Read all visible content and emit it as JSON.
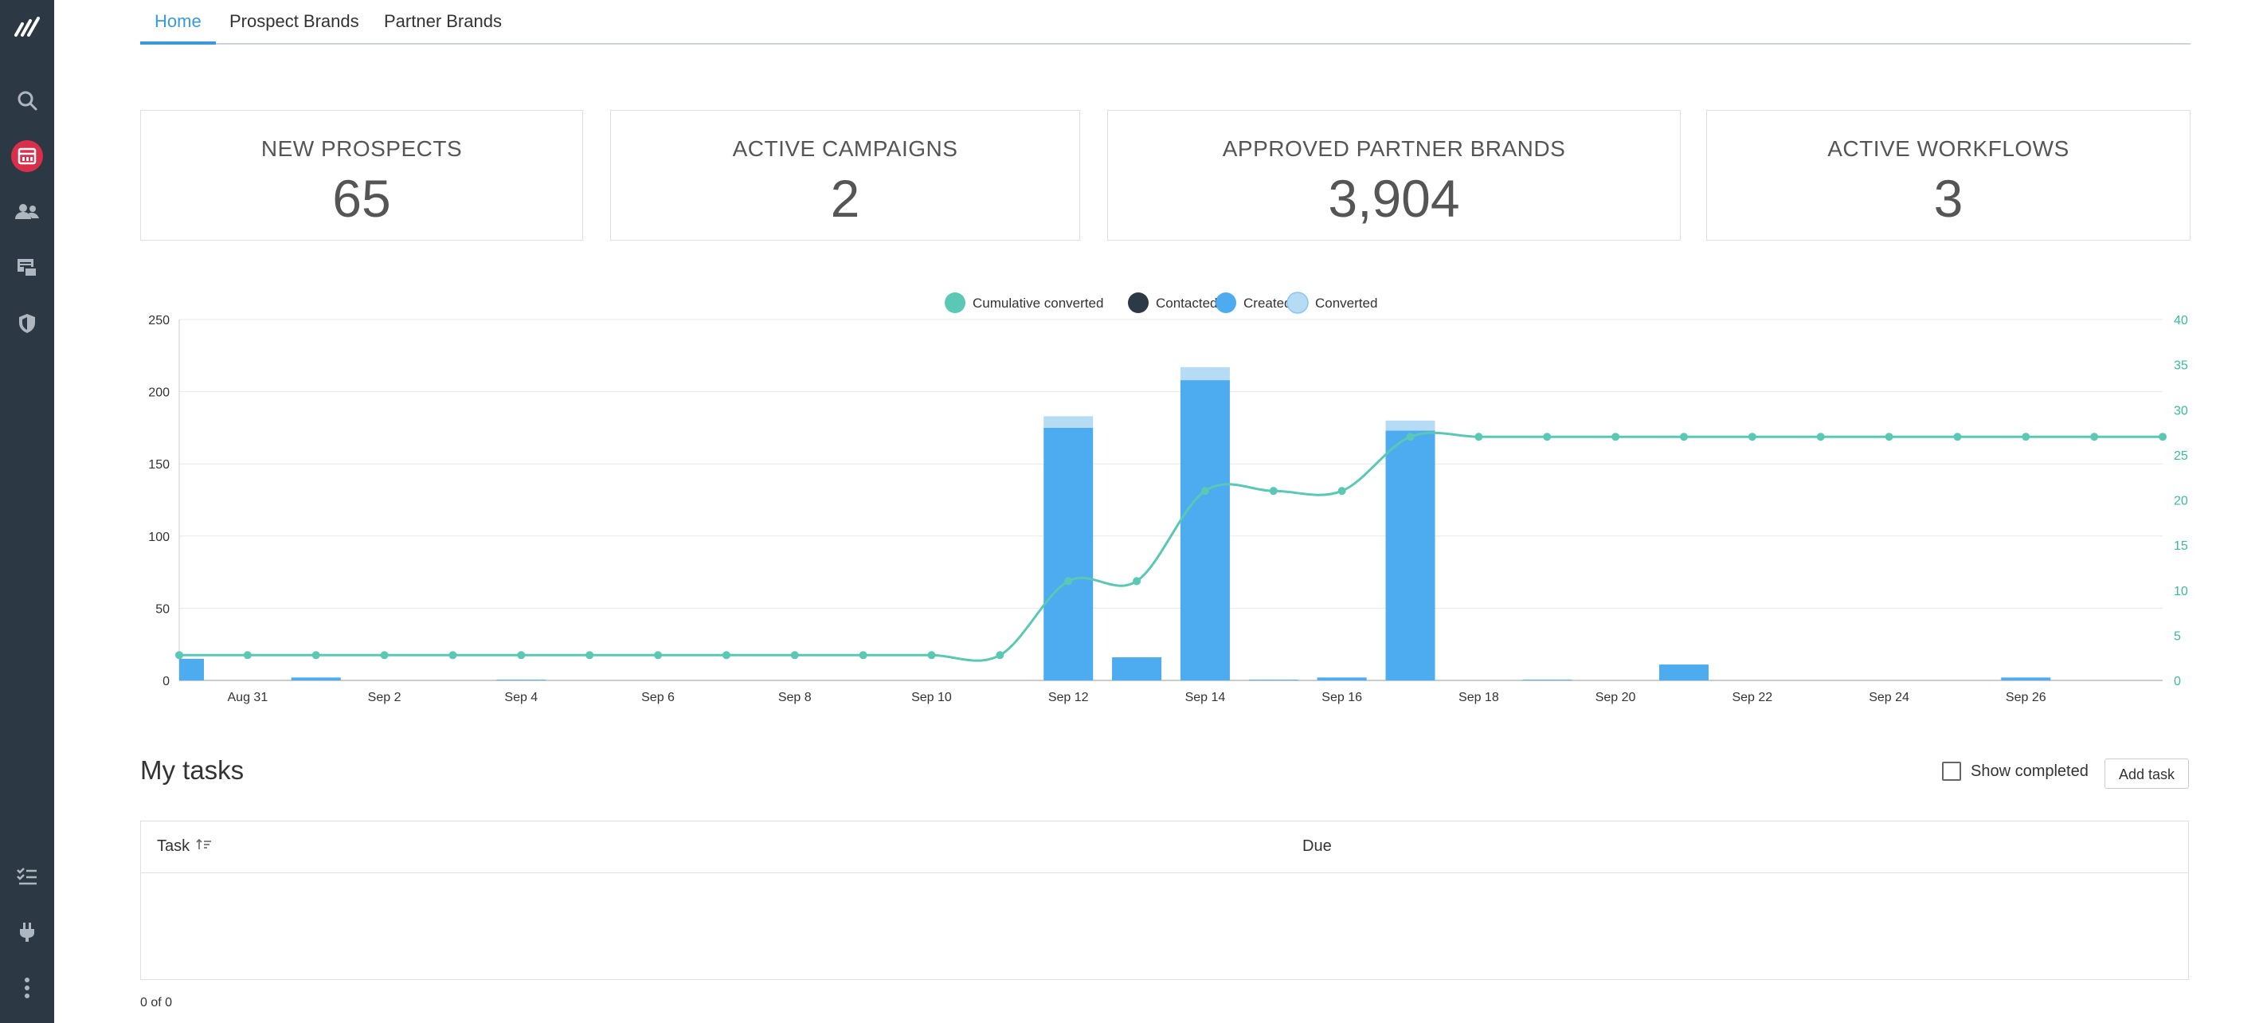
{
  "tabs": [
    {
      "label": "Home",
      "active": true
    },
    {
      "label": "Prospect Brands",
      "active": false
    },
    {
      "label": "Partner Brands",
      "active": false
    }
  ],
  "sidebar": {
    "icons": [
      "logo-icon",
      "search-icon",
      "dashboard-icon",
      "users-icon",
      "brands-icon",
      "shield-icon",
      "tasks-icon",
      "plug-icon",
      "more-icon"
    ],
    "active_color": "#d8304a",
    "bg_color": "#2c3844"
  },
  "kpis": [
    {
      "label": "NEW PROSPECTS",
      "value": "65"
    },
    {
      "label": "ACTIVE CAMPAIGNS",
      "value": "2"
    },
    {
      "label": "APPROVED PARTNER BRANDS",
      "value": "3,904"
    },
    {
      "label": "ACTIVE WORKFLOWS",
      "value": "3"
    }
  ],
  "chart_data": {
    "type": "bar",
    "categories": [
      "Aug 30",
      "Aug 31",
      "Sep 1",
      "Sep 2",
      "Sep 3",
      "Sep 4",
      "Sep 5",
      "Sep 6",
      "Sep 7",
      "Sep 8",
      "Sep 9",
      "Sep 10",
      "Sep 11",
      "Sep 12",
      "Sep 13",
      "Sep 14",
      "Sep 15",
      "Sep 16",
      "Sep 17",
      "Sep 18",
      "Sep 19",
      "Sep 20",
      "Sep 21",
      "Sep 22",
      "Sep 23",
      "Sep 24",
      "Sep 25",
      "Sep 26",
      "Sep 27",
      "Sep 28"
    ],
    "x_tick_labels": [
      "Aug 31",
      "Sep 2",
      "Sep 4",
      "Sep 6",
      "Sep 8",
      "Sep 10",
      "Sep 12",
      "Sep 14",
      "Sep 16",
      "Sep 18",
      "Sep 20",
      "Sep 22",
      "Sep 24",
      "Sep 26"
    ],
    "y_left_ticks": [
      "0",
      "50",
      "100",
      "150",
      "200",
      "250"
    ],
    "y_right_ticks": [
      "0",
      "5",
      "10",
      "15",
      "20",
      "25",
      "30",
      "35",
      "40"
    ],
    "ylim_left": [
      0,
      250
    ],
    "ylim_right": [
      0,
      40
    ],
    "legend": [
      {
        "name": "Cumulative converted",
        "color": "#5ac8b4"
      },
      {
        "name": "Contacted",
        "color": "#2c3a47"
      },
      {
        "name": "Created",
        "color": "#4dabf0"
      },
      {
        "name": "Converted",
        "color": "#b6dbf4"
      }
    ],
    "series": [
      {
        "name": "Created",
        "axis": "left",
        "color": "#4dabf0",
        "values": [
          15,
          0,
          2,
          0,
          0,
          0.5,
          0,
          0,
          0,
          0,
          0,
          0,
          0,
          175,
          16,
          208,
          0.5,
          2,
          173,
          0,
          0.5,
          0,
          11,
          0,
          0,
          0,
          0,
          2,
          0,
          0
        ]
      },
      {
        "name": "Converted",
        "axis": "left",
        "color": "#b6dbf4",
        "values": [
          0,
          0,
          0,
          0,
          0,
          0,
          0,
          0,
          0,
          0,
          0,
          0,
          0,
          8,
          0,
          9,
          0,
          0,
          7,
          0,
          0,
          0,
          0,
          0,
          0,
          0,
          0,
          0,
          0,
          0
        ]
      },
      {
        "name": "Cumulative converted",
        "axis": "right",
        "color": "#5ac8b4",
        "values": [
          2.8,
          2.8,
          2.8,
          2.8,
          2.8,
          2.8,
          2.8,
          2.8,
          2.8,
          2.8,
          2.8,
          2.8,
          2.8,
          11,
          11,
          21,
          21,
          21,
          27,
          27,
          27,
          27,
          27,
          27,
          27,
          27,
          27,
          27,
          27,
          27
        ]
      }
    ]
  },
  "tasks": {
    "title": "My tasks",
    "show_completed_label": "Show completed",
    "add_task_label": "Add task",
    "col_task": "Task",
    "col_due": "Due",
    "pager": "0 of 0"
  }
}
